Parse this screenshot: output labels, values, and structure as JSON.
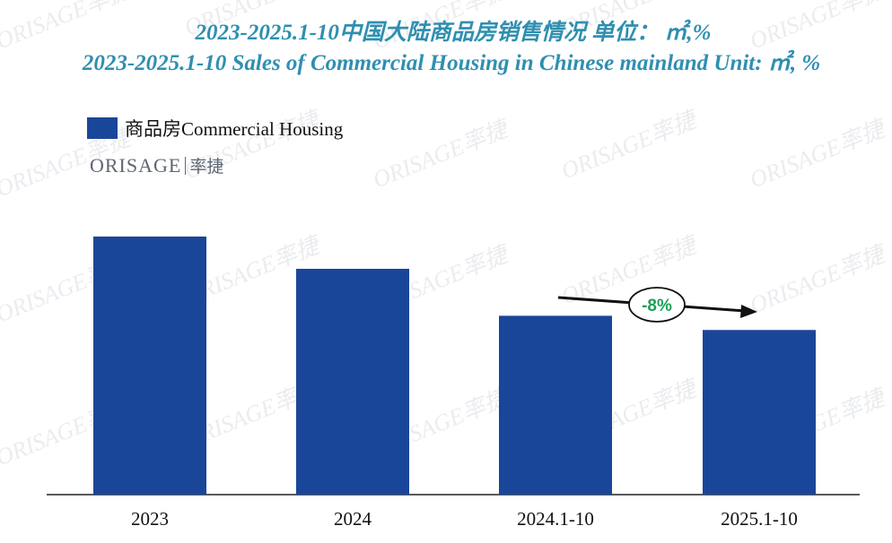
{
  "title_cn": "2023-2025.1-10中国大陆商品房销售情况  单位： ㎡,%",
  "title_en": "2023-2025.1-10 Sales of Commercial Housing in Chinese mainland Unit: ㎡, %",
  "legend_label": "商品房Commercial Housing",
  "logo": {
    "word": "ORISAGE",
    "cn": "率捷"
  },
  "watermark": "ORISAGE率捷",
  "colors": {
    "bar": "#1a4699",
    "title": "#2f8fb0",
    "callout": "#1aa157"
  },
  "chart_data": {
    "type": "bar",
    "categories": [
      "2023",
      "2024",
      "2024.1-10",
      "2025.1-10"
    ],
    "values": [
      100,
      87.5,
      69.3,
      63.8
    ],
    "ylim": [
      0,
      100
    ],
    "grid": false,
    "legend": "top-left",
    "annotation": {
      "text": "-8%",
      "from": "2024.1-10",
      "to": "2025.1-10"
    }
  }
}
